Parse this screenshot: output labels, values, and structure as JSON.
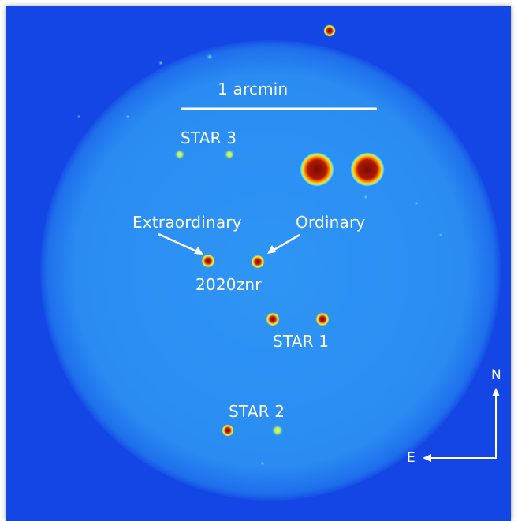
{
  "labels": {
    "scale_bar": "1 arcmin",
    "star3": "STAR 3",
    "extraordinary": "Extraordinary",
    "ordinary": "Ordinary",
    "target": "2020znr",
    "star1": "STAR 1",
    "star2": "STAR 2",
    "north": "N",
    "east": "E"
  },
  "colors": {
    "background": "#1446e6",
    "disk": "#2a8cf2",
    "source_core": "#8a0f00",
    "faint_source": "#a8f070",
    "annotation": "#ffffff"
  }
}
